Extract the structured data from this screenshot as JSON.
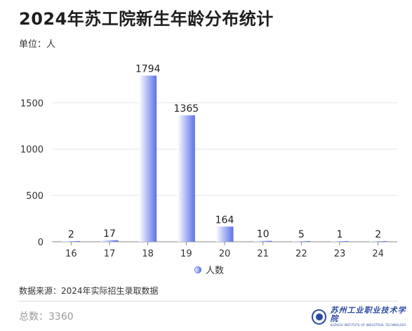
{
  "header": {
    "title": "2024年苏工院新生年龄分布统计",
    "unit": "单位：人"
  },
  "chart_data": {
    "type": "bar",
    "categories": [
      "16",
      "17",
      "18",
      "19",
      "20",
      "21",
      "22",
      "23",
      "24"
    ],
    "series": [
      {
        "name": "人数",
        "values": [
          2,
          17,
          1794,
          1365,
          164,
          10,
          5,
          1,
          2
        ]
      }
    ],
    "data_labels": [
      "2",
      "17",
      "1794",
      "1365",
      "164",
      "10",
      "5",
      "1",
      "2"
    ],
    "ylim": [
      0,
      2000
    ],
    "yticks": [
      0,
      500,
      1000,
      1500
    ],
    "ytick_labels": [
      "0",
      "500",
      "1000",
      "1500"
    ],
    "grid": true,
    "legend_position": "bottom-center",
    "bar_gradient": [
      "#ffffff",
      "#5c72e8"
    ],
    "grid_color": "#e6e6e6",
    "axis_color": "#888888"
  },
  "legend": {
    "label": "人数"
  },
  "footer": {
    "source": "数据来源：2024年实际招生录取数据",
    "total": "总数：3360"
  },
  "logo": {
    "cn": "苏州工业职业技术学院",
    "en": "SUZHOU INSTITUTE OF INDUSTRIAL TECHNOLOGY"
  }
}
